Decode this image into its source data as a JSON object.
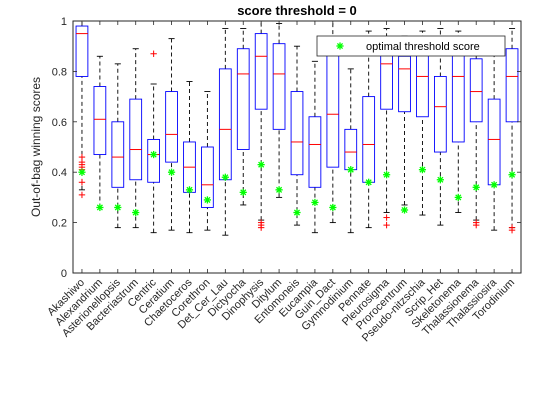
{
  "chart_data": {
    "type": "boxplot",
    "title": "score threshold = 0",
    "xlabel": "",
    "ylabel": "Out-of-bag winning scores",
    "ylim": [
      0,
      1
    ],
    "yticks": [
      0,
      0.2,
      0.4,
      0.6,
      0.8,
      1
    ],
    "ytick_labels": [
      "0",
      "0.2",
      "0.4",
      "0.6",
      "0.8",
      "1"
    ],
    "grid": false,
    "legend": {
      "placement": "top-right",
      "entries": [
        "optimal threshold score"
      ]
    },
    "colors": {
      "box": "#0000ff",
      "median": "#ff0000",
      "whisker": "#000000",
      "outlier": "#ff0000",
      "optimal": "#00ff00"
    },
    "categories": [
      "Akashiwo",
      "Alexandrium",
      "Asterionellopsis",
      "Bacteriastrum",
      "Centric",
      "Ceratium",
      "Chaetoceros",
      "Corethron",
      "Det_Cer_Lau",
      "Dictyocha",
      "Dinophysis",
      "Ditylum",
      "Entomoneis",
      "Eucampia",
      "Guin_Dact",
      "Gymnodinium",
      "Pennate",
      "Pleurosigma",
      "Prorocentrum",
      "Pseudo-nitzschia",
      "Scrip_Het",
      "Skeletonema",
      "Thalassionema",
      "Thalassiosira",
      "Torodinium"
    ],
    "series": [
      {
        "min": 0.33,
        "q1": 0.78,
        "median": 0.95,
        "q3": 0.98,
        "max": 1.0,
        "outliers": [
          0.31,
          0.36,
          0.41,
          0.42,
          0.43,
          0.44,
          0.46
        ],
        "optimal": 0.4
      },
      {
        "min": 0.26,
        "q1": 0.47,
        "median": 0.61,
        "q3": 0.74,
        "max": 0.86,
        "outliers": [],
        "optimal": 0.26
      },
      {
        "min": 0.18,
        "q1": 0.34,
        "median": 0.46,
        "q3": 0.6,
        "max": 0.83,
        "outliers": [],
        "optimal": 0.26
      },
      {
        "min": 0.18,
        "q1": 0.37,
        "median": 0.49,
        "q3": 0.69,
        "max": 0.89,
        "outliers": [],
        "optimal": 0.24
      },
      {
        "min": 0.16,
        "q1": 0.36,
        "median": 0.47,
        "q3": 0.53,
        "max": 0.75,
        "outliers": [
          0.87
        ],
        "optimal": 0.47
      },
      {
        "min": 0.17,
        "q1": 0.44,
        "median": 0.55,
        "q3": 0.72,
        "max": 0.93,
        "outliers": [],
        "optimal": 0.4
      },
      {
        "min": 0.16,
        "q1": 0.32,
        "median": 0.42,
        "q3": 0.52,
        "max": 0.76,
        "outliers": [],
        "optimal": 0.33
      },
      {
        "min": 0.17,
        "q1": 0.26,
        "median": 0.35,
        "q3": 0.5,
        "max": 0.72,
        "outliers": [],
        "optimal": 0.29
      },
      {
        "min": 0.15,
        "q1": 0.37,
        "median": 0.57,
        "q3": 0.81,
        "max": 0.97,
        "outliers": [],
        "optimal": 0.38
      },
      {
        "min": 0.27,
        "q1": 0.49,
        "median": 0.79,
        "q3": 0.89,
        "max": 0.97,
        "outliers": [],
        "optimal": 0.32
      },
      {
        "min": 0.21,
        "q1": 0.65,
        "median": 0.86,
        "q3": 0.95,
        "max": 1.0,
        "outliers": [
          0.18,
          0.19,
          0.2
        ],
        "optimal": 0.43
      },
      {
        "min": 0.3,
        "q1": 0.57,
        "median": 0.79,
        "q3": 0.91,
        "max": 0.99,
        "outliers": [],
        "optimal": 0.33
      },
      {
        "min": 0.19,
        "q1": 0.39,
        "median": 0.52,
        "q3": 0.72,
        "max": 0.9,
        "outliers": [],
        "optimal": 0.24
      },
      {
        "min": 0.16,
        "q1": 0.34,
        "median": 0.51,
        "q3": 0.62,
        "max": 0.84,
        "outliers": [],
        "optimal": 0.28
      },
      {
        "min": 0.2,
        "q1": 0.42,
        "median": 0.63,
        "q3": 0.92,
        "max": 1.0,
        "outliers": [],
        "optimal": 0.26
      },
      {
        "min": 0.16,
        "q1": 0.41,
        "median": 0.48,
        "q3": 0.57,
        "max": 0.81,
        "outliers": [],
        "optimal": 0.41
      },
      {
        "min": 0.18,
        "q1": 0.36,
        "median": 0.51,
        "q3": 0.7,
        "max": 0.96,
        "outliers": [],
        "optimal": 0.36
      },
      {
        "min": 0.24,
        "q1": 0.65,
        "median": 0.83,
        "q3": 0.88,
        "max": 0.97,
        "outliers": [
          0.19,
          0.22
        ],
        "optimal": 0.39
      },
      {
        "min": 0.27,
        "q1": 0.64,
        "median": 0.81,
        "q3": 0.86,
        "max": 0.94,
        "outliers": [],
        "optimal": 0.25
      },
      {
        "min": 0.23,
        "q1": 0.62,
        "median": 0.78,
        "q3": 0.87,
        "max": 0.96,
        "outliers": [],
        "optimal": 0.41
      },
      {
        "min": 0.19,
        "q1": 0.48,
        "median": 0.66,
        "q3": 0.78,
        "max": 0.97,
        "outliers": [],
        "optimal": 0.37
      },
      {
        "min": 0.24,
        "q1": 0.52,
        "median": 0.78,
        "q3": 0.87,
        "max": 0.96,
        "outliers": [],
        "optimal": 0.3
      },
      {
        "min": 0.21,
        "q1": 0.6,
        "median": 0.72,
        "q3": 0.85,
        "max": 0.93,
        "outliers": [
          0.19,
          0.2
        ],
        "optimal": 0.34
      },
      {
        "min": 0.17,
        "q1": 0.35,
        "median": 0.53,
        "q3": 0.69,
        "max": 0.89,
        "outliers": [],
        "optimal": 0.35
      },
      {
        "min": 0.18,
        "q1": 0.6,
        "median": 0.78,
        "q3": 0.89,
        "max": 0.97,
        "outliers": [
          0.17,
          0.18
        ],
        "optimal": 0.39
      }
    ]
  }
}
